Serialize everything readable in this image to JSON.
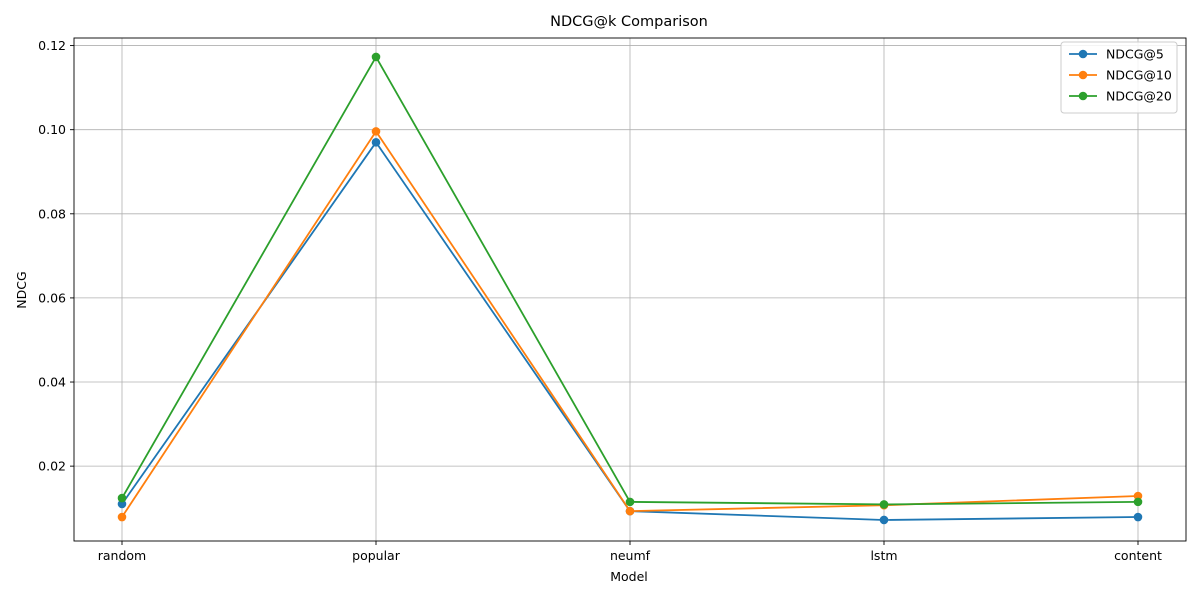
{
  "chart_data": {
    "type": "line",
    "title": "NDCG@k Comparison",
    "xlabel": "Model",
    "ylabel": "NDCG",
    "categories": [
      "random",
      "popular",
      "neumf",
      "lstm",
      "content"
    ],
    "ylim": [
      0.0022,
      0.1218
    ],
    "yticks": [
      0.02,
      0.04,
      0.06,
      0.08,
      0.1,
      0.12
    ],
    "ytick_labels": [
      "0.02",
      "0.04",
      "0.06",
      "0.08",
      "0.10",
      "0.12"
    ],
    "grid": true,
    "legend_position": "top-right",
    "marker": "circle",
    "series": [
      {
        "name": "NDCG@5",
        "color": "#1f77b4",
        "values": [
          0.011,
          0.097,
          0.0093,
          0.0072,
          0.0079
        ]
      },
      {
        "name": "NDCG@10",
        "color": "#ff7f0e",
        "values": [
          0.0079,
          0.0996,
          0.0093,
          0.0107,
          0.0129
        ]
      },
      {
        "name": "NDCG@20",
        "color": "#2ca02c",
        "values": [
          0.0124,
          0.1173,
          0.0115,
          0.0109,
          0.0115
        ]
      }
    ]
  }
}
